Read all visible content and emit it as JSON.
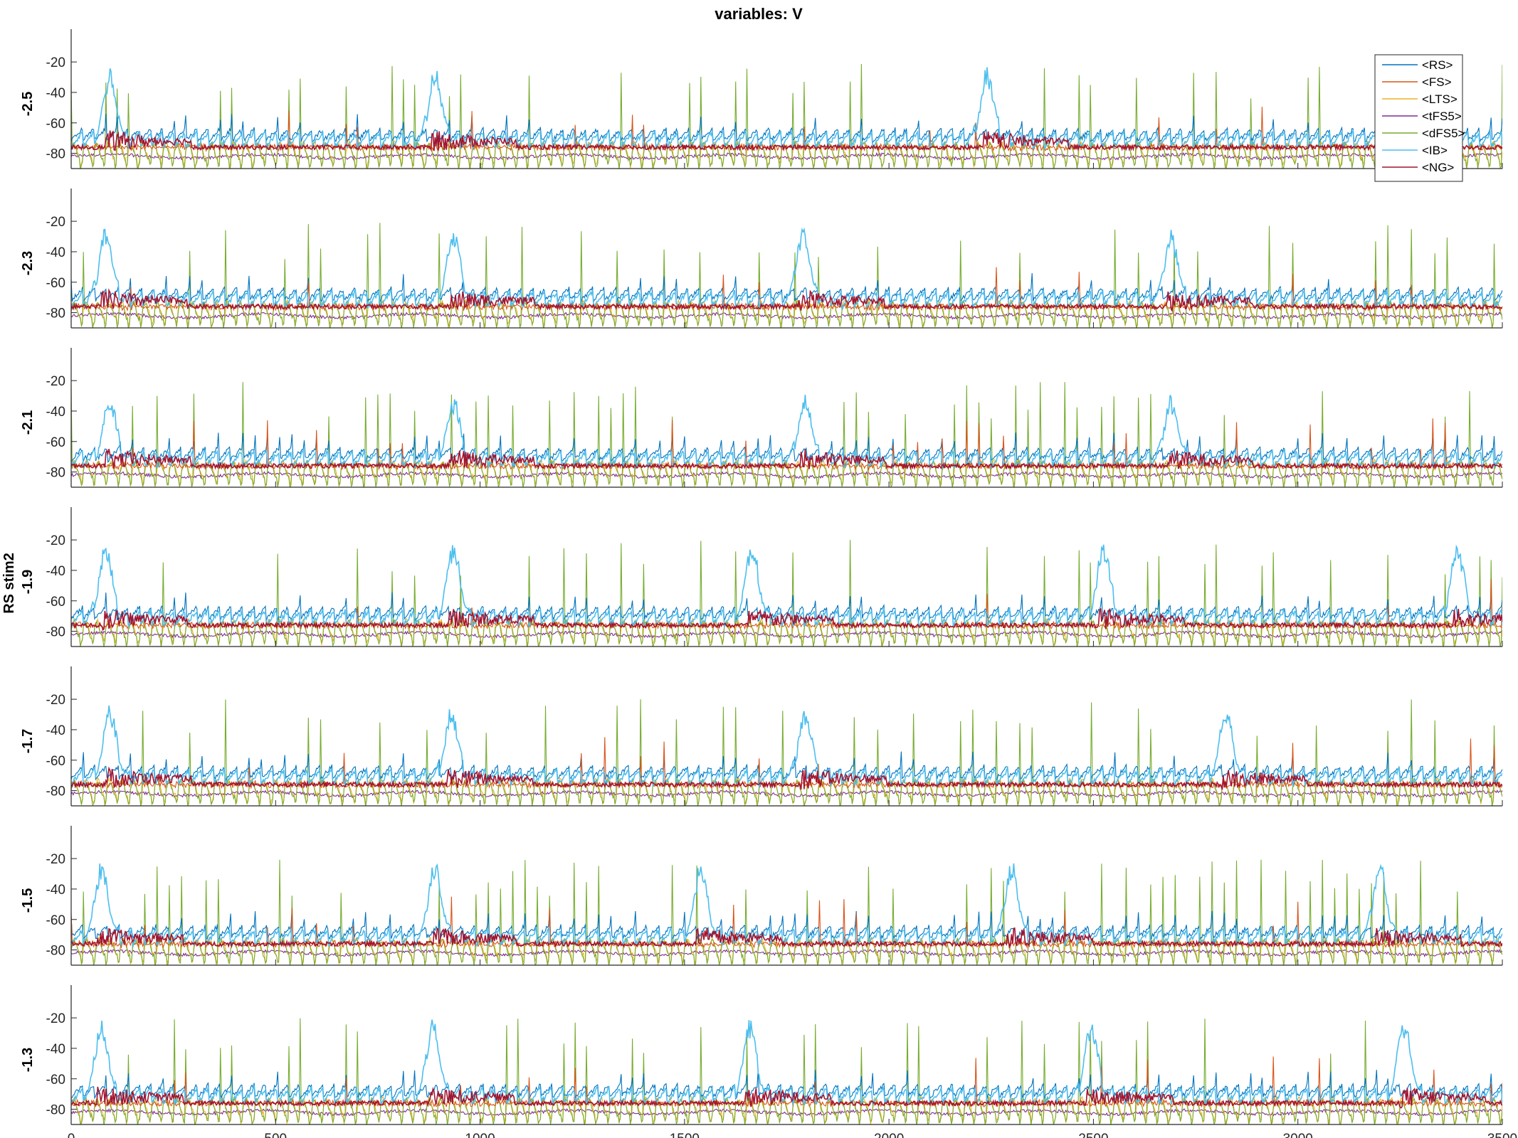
{
  "figure": {
    "title": "variables: V",
    "group_label": "RS stim2"
  },
  "legend": {
    "placement": "top-right",
    "entries": [
      {
        "name": "<RS>",
        "color": "#0072BD"
      },
      {
        "name": "<FS>",
        "color": "#D95319"
      },
      {
        "name": "<LTS>",
        "color": "#EDB120"
      },
      {
        "name": "<tFS5>",
        "color": "#7E2F8E"
      },
      {
        "name": "<dFS5>",
        "color": "#77AC30"
      },
      {
        "name": "<IB>",
        "color": "#4DBEEE"
      },
      {
        "name": "<NG>",
        "color": "#A2142F"
      }
    ]
  },
  "chart_data": {
    "type": "line",
    "xlim": [
      0,
      3500
    ],
    "ylim": [
      -90,
      -5
    ],
    "x_ticks": [
      "0",
      "500",
      "1000",
      "1500",
      "2000",
      "2500",
      "3000",
      "3500"
    ],
    "y_ticks": [
      "-20",
      "-40",
      "-60",
      "-80"
    ],
    "grid": false,
    "series_names": [
      "<RS>",
      "<FS>",
      "<LTS>",
      "<tFS5>",
      "<dFS5>",
      "<IB>",
      "<NG>"
    ],
    "panels": [
      {
        "ylabel": "-2.5",
        "ib_burst_times": [
          95,
          890,
          2240
        ],
        "burst_peak": -30
      },
      {
        "ylabel": "-2.3",
        "ib_burst_times": [
          85,
          935,
          1790,
          2690
        ],
        "burst_peak": -30
      },
      {
        "ylabel": "-2.1",
        "ib_burst_times": [
          95,
          935,
          1795,
          2690
        ],
        "burst_peak": -35
      },
      {
        "ylabel": "-1.9",
        "ib_burst_times": [
          85,
          935,
          1665,
          2525,
          3390
        ],
        "burst_peak": -27
      },
      {
        "ylabel": "-1.7",
        "ib_burst_times": [
          95,
          930,
          1795,
          2825
        ],
        "burst_peak": -30
      },
      {
        "ylabel": "-1.5",
        "ib_burst_times": [
          75,
          890,
          1540,
          2300,
          3200
        ],
        "burst_peak": -27
      },
      {
        "ylabel": "-1.3",
        "ib_burst_times": [
          75,
          885,
          1660,
          2495,
          3260
        ],
        "burst_peak": -27
      }
    ],
    "baseline_levels": {
      "<RS>": -72,
      "<FS>": -76,
      "<LTS>": -78,
      "<tFS5>": -82,
      "<dFS5>": -79,
      "<IB>": -74,
      "<NG>": -73
    }
  }
}
